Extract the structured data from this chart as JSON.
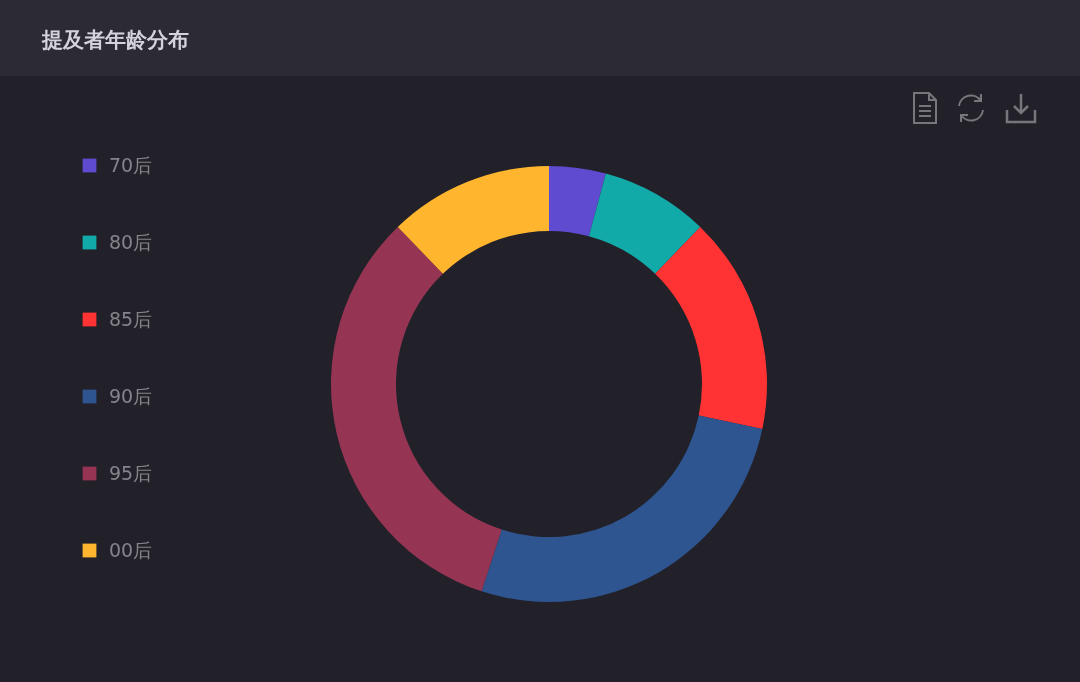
{
  "chart_data": {
    "type": "donut",
    "title": "提及者年龄分布",
    "categories": [
      "70后",
      "80后",
      "85后",
      "90后",
      "95后",
      "00后"
    ],
    "values": [
      4.2,
      8,
      16.1,
      26.7,
      32.8,
      12.2
    ],
    "colors": [
      "#5f4bcf",
      "#12aaa8",
      "#ff3333",
      "#2e5590",
      "#963553",
      "#ffb62e"
    ],
    "legend": "left"
  }
}
